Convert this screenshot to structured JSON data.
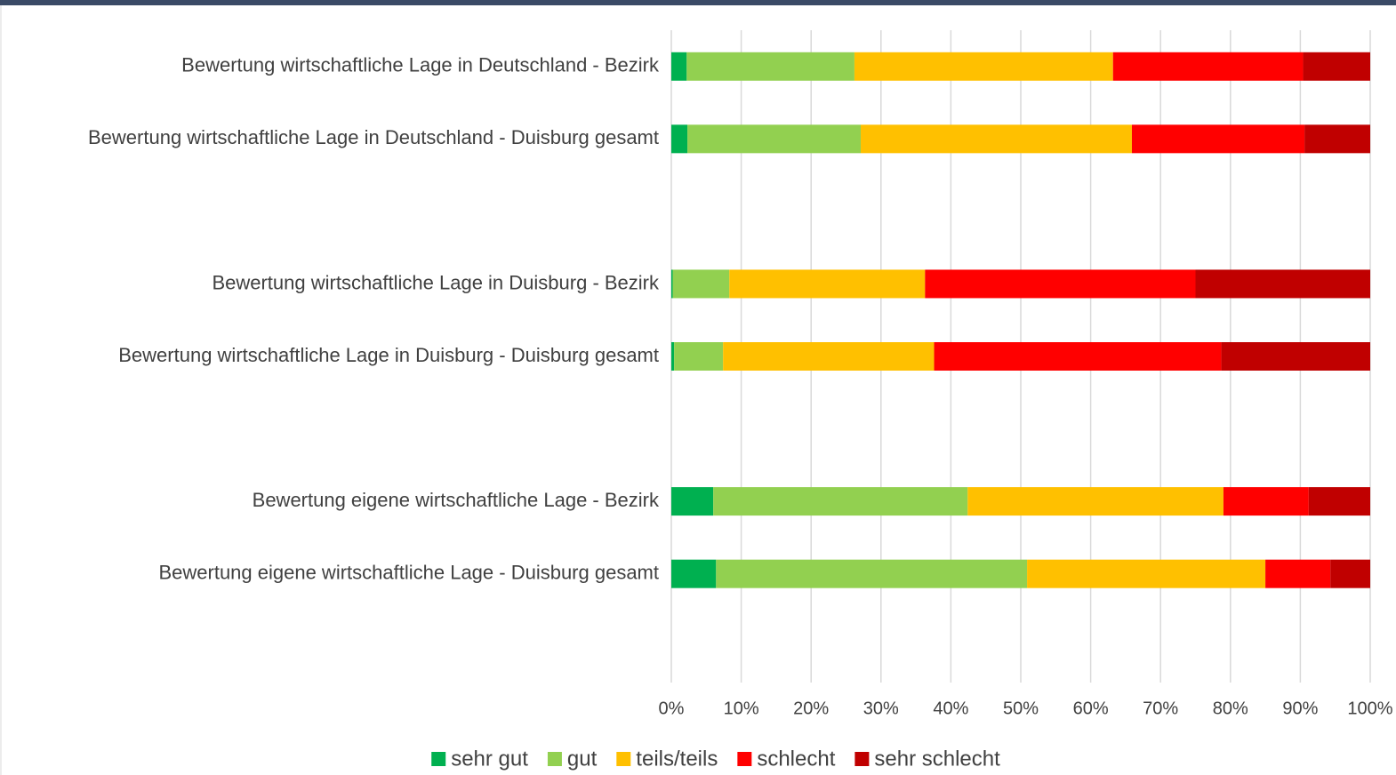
{
  "chart_data": {
    "type": "stacked-barh",
    "categories": [
      "Bewertung wirtschaftliche Lage in Deutschland - Bezirk",
      "Bewertung wirtschaftliche Lage in Deutschland - Duisburg gesamt",
      null,
      "Bewertung wirtschaftliche Lage in Duisburg - Bezirk",
      "Bewertung wirtschaftliche Lage in Duisburg - Duisburg gesamt",
      null,
      "Bewertung eigene wirtschaftliche Lage - Bezirk",
      "Bewertung eigene wirtschaftliche Lage - Duisburg gesamt",
      null
    ],
    "series": [
      {
        "name": "sehr gut",
        "color": "#00b050",
        "values": [
          2.2,
          2.3,
          null,
          0.2,
          0.4,
          null,
          6.0,
          6.4,
          null
        ]
      },
      {
        "name": "gut",
        "color": "#92d050",
        "values": [
          24.0,
          24.8,
          null,
          8.1,
          7.0,
          null,
          36.4,
          44.5,
          null
        ]
      },
      {
        "name": "teils/teils",
        "color": "#ffc000",
        "values": [
          37.0,
          38.8,
          null,
          28.0,
          30.2,
          null,
          36.6,
          34.1,
          null
        ]
      },
      {
        "name": "schlecht",
        "color": "#ff0000",
        "values": [
          27.2,
          24.7,
          null,
          38.7,
          41.1,
          null,
          12.2,
          9.3,
          null
        ]
      },
      {
        "name": "sehr schlecht",
        "color": "#c00000",
        "values": [
          9.6,
          9.4,
          null,
          25.0,
          21.3,
          null,
          8.8,
          5.7,
          null
        ]
      }
    ],
    "xlim": [
      0,
      100
    ],
    "xticks": [
      {
        "value": 0,
        "label": "0%"
      },
      {
        "value": 10,
        "label": "10%"
      },
      {
        "value": 20,
        "label": "20%"
      },
      {
        "value": 30,
        "label": "30%"
      },
      {
        "value": 40,
        "label": "40%"
      },
      {
        "value": 50,
        "label": "50%"
      },
      {
        "value": 60,
        "label": "60%"
      },
      {
        "value": 70,
        "label": "70%"
      },
      {
        "value": 80,
        "label": "80%"
      },
      {
        "value": 90,
        "label": "90%"
      },
      {
        "value": 100,
        "label": "100%"
      }
    ],
    "grid": true,
    "legend": "bottom"
  }
}
